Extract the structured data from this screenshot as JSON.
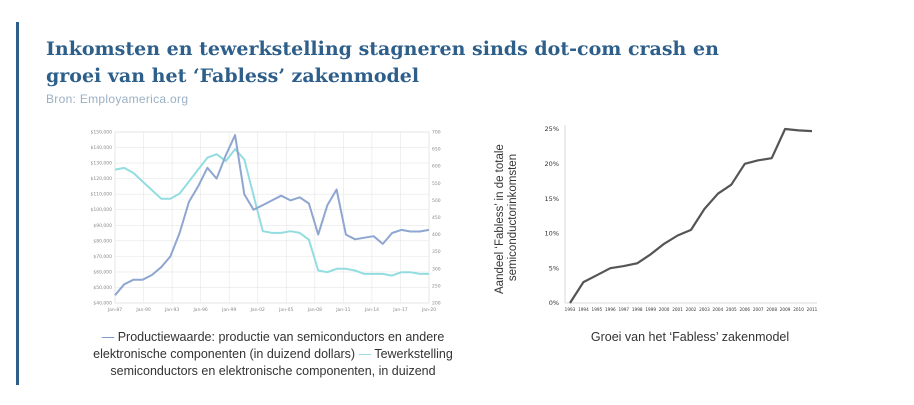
{
  "page": {
    "title": "Inkomsten en tewerkstelling stagneren sinds dot-com crash en groei van het ‘Fabless’ zakenmodel",
    "source": "Bron: Employamerica.org"
  },
  "colors": {
    "title": "#2d5f8a",
    "accent_bar": "#2e5e8c",
    "series_production": "#8ea6d0",
    "series_employment": "#93dde0",
    "fabless_line": "#555555"
  },
  "chart_data": [
    {
      "type": "line",
      "title": "",
      "x_tick_labels": [
        "Jan-87",
        "Jan-90",
        "Jan-93",
        "Jan-96",
        "Jan-99",
        "Jan-02",
        "Jan-05",
        "Jan-08",
        "Jan-11",
        "Jan-14",
        "Jan-17",
        "Jan-20"
      ],
      "y_left_tick_labels": [
        "$150,000",
        "$140,000",
        "$130,000",
        "$120,000",
        "$110,000",
        "$100,000",
        "$90,000",
        "$80,000",
        "$70,000",
        "$60,000",
        "$50,000",
        "$40,000"
      ],
      "y_left_range": [
        40000,
        150000
      ],
      "y_right_tick_labels": [
        "700",
        "650",
        "600",
        "550",
        "500",
        "450",
        "400",
        "350",
        "300",
        "250",
        "200"
      ],
      "y_right_range": [
        200,
        700
      ],
      "grid": true,
      "legend_text": "— Productiewaarde: productie van semiconductors en andere elektronische componenten (in duizend dollars) — Tewerkstelling semiconductors en elektronische componenten, in duizend",
      "series": [
        {
          "name": "Productiewaarde: productie van semiconductors en andere elektronische componenten (in duizend dollars)",
          "axis": "left",
          "x": [
            1987,
            1988,
            1989,
            1990,
            1991,
            1992,
            1993,
            1994,
            1995,
            1996,
            1997,
            1998,
            1999,
            2000,
            2001,
            2002,
            2003,
            2004,
            2005,
            2006,
            2007,
            2008,
            2009,
            2010,
            2011,
            2012,
            2013,
            2014,
            2015,
            2016,
            2017,
            2018,
            2019,
            2020,
            2021
          ],
          "values": [
            45000,
            52000,
            55000,
            55000,
            58000,
            63000,
            70000,
            85000,
            105000,
            115000,
            127000,
            120000,
            135000,
            148000,
            110000,
            100000,
            103000,
            106000,
            109000,
            106000,
            108000,
            104000,
            84000,
            103000,
            113000,
            84000,
            81000,
            82000,
            83000,
            78000,
            85000,
            87000,
            86000,
            86000,
            87000
          ]
        },
        {
          "name": "Tewerkstelling semiconductors en elektronische componenten, in duizend",
          "axis": "right",
          "x": [
            1987,
            1988,
            1989,
            1990,
            1991,
            1992,
            1993,
            1994,
            1995,
            1996,
            1997,
            1998,
            1999,
            2000,
            2001,
            2002,
            2003,
            2004,
            2005,
            2006,
            2007,
            2008,
            2009,
            2010,
            2011,
            2012,
            2013,
            2014,
            2015,
            2016,
            2017,
            2018,
            2019,
            2020,
            2021
          ],
          "values": [
            590,
            595,
            580,
            555,
            530,
            505,
            505,
            520,
            555,
            590,
            625,
            635,
            615,
            650,
            620,
            515,
            410,
            405,
            405,
            410,
            405,
            385,
            295,
            290,
            300,
            300,
            295,
            285,
            285,
            285,
            280,
            290,
            290,
            285,
            285
          ]
        }
      ]
    },
    {
      "type": "line",
      "title": "",
      "xlabel": "Groei van het ‘Fabless’ zakenmodel",
      "ylabel": "Aandeel ‘Fabless’ in de totale semiconductorinkomsten",
      "categories": [
        "1993",
        "1994",
        "1995",
        "1996",
        "1997",
        "1998",
        "1999",
        "2000",
        "2001",
        "2002",
        "2003",
        "2004",
        "2005",
        "2006",
        "2007",
        "2008",
        "2009",
        "2010",
        "2011"
      ],
      "y_tick_labels": [
        "25%",
        "20%",
        "15%",
        "10%",
        "5%",
        "0%"
      ],
      "ylim": [
        0,
        25
      ],
      "grid": false,
      "series": [
        {
          "values": [
            0,
            3,
            4,
            5,
            5.3,
            5.7,
            7,
            8.5,
            9.7,
            10.5,
            13.5,
            15.7,
            17,
            20,
            20.5,
            20.8,
            25,
            24.8,
            24.7
          ]
        }
      ]
    }
  ]
}
